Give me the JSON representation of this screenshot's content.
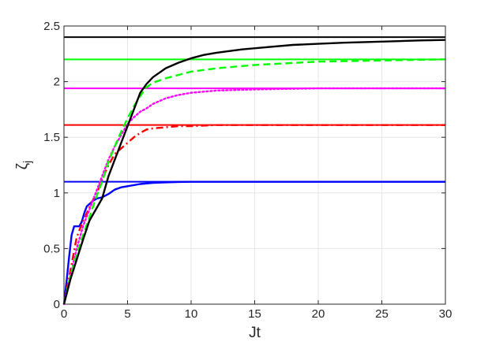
{
  "chart_data": {
    "type": "line",
    "title": "",
    "xlabel": "Jt",
    "ylabel": "ζ",
    "ylabel_subscript": "j",
    "xlim": [
      0,
      30
    ],
    "ylim": [
      0,
      2.5
    ],
    "grid": true,
    "box": true,
    "x_ticks": [
      0,
      5,
      10,
      15,
      20,
      25,
      30
    ],
    "x_tick_labels": [
      "0",
      "5",
      "10",
      "15",
      "20",
      "25",
      "30"
    ],
    "y_ticks": [
      0,
      0.5,
      1,
      1.5,
      2,
      2.5
    ],
    "y_tick_labels": [
      "0",
      "0.5",
      "1",
      "1.5",
      "2",
      "2.5"
    ],
    "series": [
      {
        "color": "#0000ff",
        "style": "solid",
        "kind": "asymptote",
        "x": [
          0,
          30
        ],
        "y": [
          1.1,
          1.1
        ]
      },
      {
        "color": "#ff0000",
        "style": "solid",
        "kind": "asymptote",
        "x": [
          0,
          30
        ],
        "y": [
          1.61,
          1.61
        ]
      },
      {
        "color": "#ff00ff",
        "style": "solid",
        "kind": "asymptote",
        "x": [
          0,
          30
        ],
        "y": [
          1.94,
          1.94
        ]
      },
      {
        "color": "#00ff00",
        "style": "solid",
        "kind": "asymptote",
        "x": [
          0,
          30
        ],
        "y": [
          2.2,
          2.2
        ]
      },
      {
        "color": "#000000",
        "style": "solid",
        "kind": "asymptote",
        "x": [
          0,
          30
        ],
        "y": [
          2.4,
          2.4
        ]
      },
      {
        "color": "#0000ff",
        "style": "solid",
        "kind": "curve",
        "x": [
          0,
          0.2,
          0.4,
          0.6,
          0.8,
          1.0,
          1.2,
          1.4,
          1.6,
          1.8,
          2.0,
          2.3,
          2.6,
          3.0,
          3.5,
          4.0,
          4.5,
          5.0,
          6.0,
          7.0,
          8.0,
          9.0,
          10.0,
          12.0,
          15.0,
          20.0,
          25.0,
          30.0
        ],
        "y": [
          0,
          0.2,
          0.42,
          0.62,
          0.7,
          0.7,
          0.7,
          0.74,
          0.82,
          0.88,
          0.9,
          0.93,
          0.95,
          0.96,
          0.99,
          1.03,
          1.05,
          1.06,
          1.08,
          1.09,
          1.095,
          1.098,
          1.1,
          1.1,
          1.1,
          1.1,
          1.1,
          1.1
        ]
      },
      {
        "color": "#ff0000",
        "style": "dashdot",
        "kind": "curve",
        "x": [
          0,
          0.3,
          0.6,
          1.0,
          1.4,
          1.8,
          2.2,
          2.6,
          3.0,
          3.5,
          4.0,
          4.5,
          5.0,
          5.5,
          6.0,
          6.5,
          7.0,
          8.0,
          9.0,
          10.0,
          12.0,
          15.0,
          20.0,
          25.0,
          30.0
        ],
        "y": [
          0,
          0.18,
          0.36,
          0.6,
          0.72,
          0.82,
          0.92,
          1.0,
          1.12,
          1.25,
          1.35,
          1.4,
          1.45,
          1.5,
          1.54,
          1.57,
          1.58,
          1.59,
          1.6,
          1.6,
          1.61,
          1.61,
          1.61,
          1.61,
          1.61
        ]
      },
      {
        "color": "#ff00ff",
        "style": "dotted",
        "kind": "curve",
        "x": [
          0,
          0.3,
          0.6,
          1.0,
          1.5,
          2.0,
          2.5,
          3.0,
          3.5,
          4.0,
          4.5,
          5.0,
          5.5,
          6.0,
          6.5,
          7.0,
          8.0,
          9.0,
          10.0,
          12.0,
          15.0,
          20.0,
          25.0,
          30.0
        ],
        "y": [
          0,
          0.15,
          0.3,
          0.5,
          0.7,
          0.85,
          1.0,
          1.15,
          1.3,
          1.42,
          1.52,
          1.62,
          1.68,
          1.73,
          1.76,
          1.8,
          1.85,
          1.88,
          1.9,
          1.92,
          1.93,
          1.94,
          1.94,
          1.94
        ]
      },
      {
        "color": "#00ff00",
        "style": "dashed",
        "kind": "curve",
        "x": [
          0,
          0.5,
          1.0,
          1.5,
          2.0,
          2.5,
          3.0,
          3.5,
          4.0,
          4.5,
          5.0,
          5.5,
          6.0,
          6.5,
          7.0,
          8.0,
          9.0,
          10.0,
          12.0,
          15.0,
          20.0,
          25.0,
          30.0
        ],
        "y": [
          0,
          0.25,
          0.45,
          0.62,
          0.78,
          0.95,
          1.1,
          1.28,
          1.42,
          1.55,
          1.67,
          1.78,
          1.87,
          1.95,
          1.99,
          2.03,
          2.06,
          2.09,
          2.12,
          2.15,
          2.18,
          2.19,
          2.2
        ]
      },
      {
        "color": "#000000",
        "style": "solid",
        "kind": "curve",
        "x": [
          0,
          0.5,
          1.0,
          1.5,
          2.0,
          2.5,
          3.0,
          3.5,
          4.0,
          4.5,
          5.0,
          5.5,
          6.0,
          6.5,
          7.0,
          7.5,
          8.0,
          9.0,
          10.0,
          11.0,
          12.0,
          14.0,
          16.0,
          18.0,
          20.0,
          22.0,
          25.0,
          28.0,
          30.0
        ],
        "y": [
          0,
          0.22,
          0.4,
          0.58,
          0.75,
          0.85,
          0.95,
          1.15,
          1.3,
          1.45,
          1.6,
          1.75,
          1.9,
          1.98,
          2.04,
          2.08,
          2.12,
          2.17,
          2.21,
          2.24,
          2.26,
          2.29,
          2.31,
          2.33,
          2.34,
          2.35,
          2.36,
          2.37,
          2.375
        ]
      }
    ]
  }
}
